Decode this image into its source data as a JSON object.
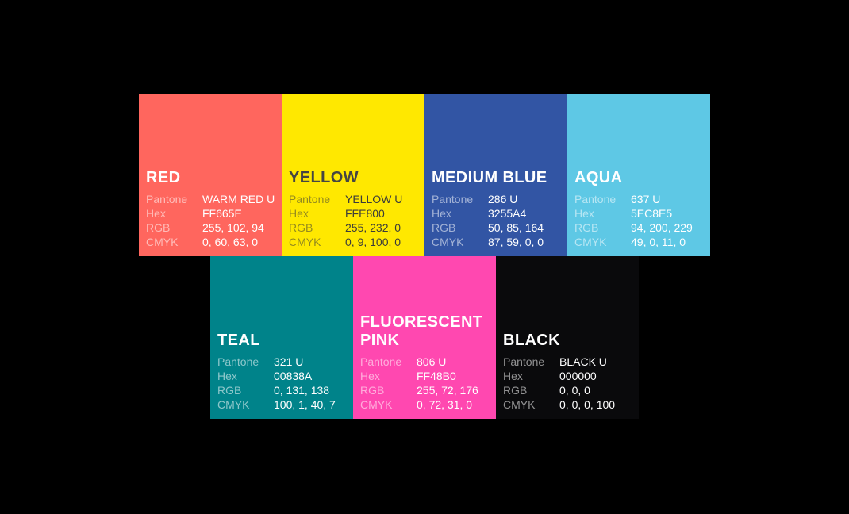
{
  "canvas": {
    "background": "#000000"
  },
  "spec_labels": {
    "pantone": "Pantone",
    "hex": "Hex",
    "rgb": "RGB",
    "cmyk": "CMYK"
  },
  "swatches": [
    {
      "name": "RED",
      "color": "#FF665E",
      "pantone": "WARM RED U",
      "hex": "FF665E",
      "rgb": "255, 102, 94",
      "cmyk": "0, 60, 63, 0"
    },
    {
      "name": "YELLOW",
      "color": "#FFE800",
      "pantone": "YELLOW U",
      "hex": "FFE800",
      "rgb": "255, 232, 0",
      "cmyk": "0, 9, 100, 0"
    },
    {
      "name": "MEDIUM BLUE",
      "color": "#3255A4",
      "pantone": "286 U",
      "hex": "3255A4",
      "rgb": "50, 85, 164",
      "cmyk": "87, 59, 0, 0"
    },
    {
      "name": "AQUA",
      "color": "#5EC8E5",
      "pantone": "637 U",
      "hex": "5EC8E5",
      "rgb": "94, 200, 229",
      "cmyk": "49, 0, 11, 0"
    },
    {
      "name": "TEAL",
      "color": "#00838A",
      "pantone": "321 U",
      "hex": "00838A",
      "rgb": "0, 131, 138",
      "cmyk": "100, 1, 40, 7"
    },
    {
      "name": "FLUORESCENT PINK",
      "color": "#FF48B0",
      "pantone": "806 U",
      "hex": "FF48B0",
      "rgb": "255, 72, 176",
      "cmyk": "0, 72, 31, 0"
    },
    {
      "name": "BLACK",
      "color": "#0A0A0C",
      "pantone": "BLACK U",
      "hex": "000000",
      "rgb": "0, 0, 0",
      "cmyk": "0, 0, 0, 100"
    }
  ]
}
